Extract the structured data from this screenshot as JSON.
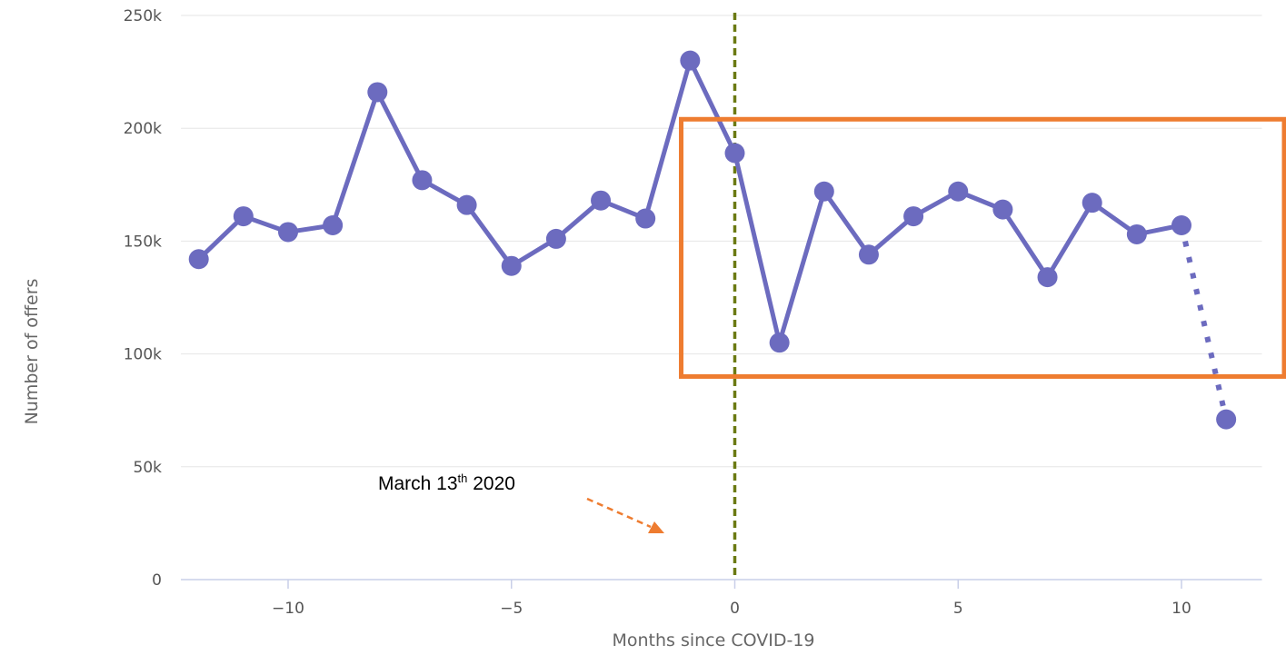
{
  "chart_data": {
    "type": "line",
    "xlabel": "Months since COVID-19",
    "ylabel": "Number of offers",
    "xlim": [
      -12.4,
      11.8
    ],
    "ylim": [
      0,
      250000
    ],
    "x_ticks": [
      -10,
      -5,
      0,
      5,
      10
    ],
    "x_tick_labels": [
      "−10",
      "−5",
      "0",
      "5",
      "10"
    ],
    "y_ticks": [
      0,
      50000,
      100000,
      150000,
      200000,
      250000
    ],
    "y_tick_labels": [
      "0",
      "50k",
      "100k",
      "150k",
      "200k",
      "250k"
    ],
    "grid": "horizontal",
    "series": [
      {
        "color": "#6c6bbf",
        "x": [
          -12,
          -11,
          -10,
          -9,
          -8,
          -7,
          -6,
          -5,
          -4,
          -3,
          -2,
          -1,
          0,
          1,
          2,
          3,
          4,
          5,
          6,
          7,
          8,
          9,
          10,
          11
        ],
        "values": [
          142000,
          161000,
          154000,
          157000,
          216000,
          177000,
          166000,
          139000,
          151000,
          168000,
          160000,
          230000,
          189000,
          105000,
          172000,
          144000,
          161000,
          172000,
          164000,
          134000,
          167000,
          153000,
          157000,
          71000
        ],
        "dotted_from_x": 10
      }
    ],
    "reference_line": {
      "x": 0,
      "color": "#6b7a12",
      "style": "dashed"
    },
    "highlight_box": {
      "x_from": -1.2,
      "y_from": 90000,
      "y_to": 204000,
      "color": "#ee7c30"
    },
    "annotation": {
      "text_main": "March 13",
      "text_sup": "th",
      "text_tail": " 2020",
      "arrow_color": "#ee7c30"
    }
  }
}
